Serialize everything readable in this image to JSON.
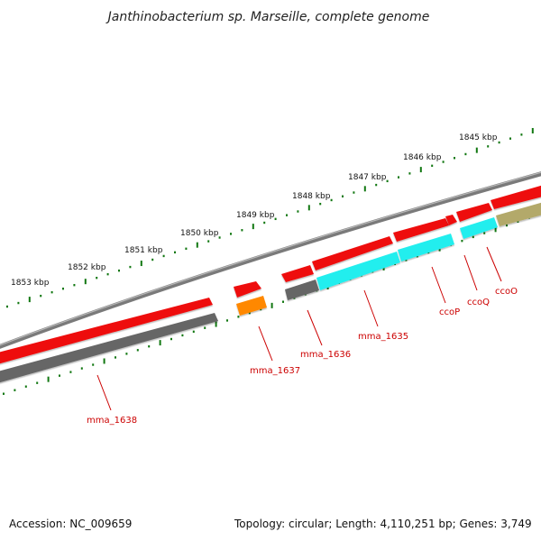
{
  "title": "Janthinobacterium sp. Marseille, complete genome",
  "footer": {
    "accession": "Accession: NC_009659",
    "summary": "Topology: circular; Length: 4,110,251 bp; Genes: 3,749"
  },
  "colors": {
    "cds": "#ee1111",
    "rna_gray": "#666666",
    "orange": "#ff8800",
    "cyan": "#22eeee",
    "olive": "#b3a96a",
    "backbone": "#777777",
    "ticks": "#117711",
    "labels": "#cc0000"
  },
  "ticks": [
    {
      "label": "1853 kbp"
    },
    {
      "label": "1852 kbp"
    },
    {
      "label": "1851 kbp"
    },
    {
      "label": "1850 kbp"
    },
    {
      "label": "1849 kbp"
    },
    {
      "label": "1848 kbp"
    },
    {
      "label": "1847 kbp"
    },
    {
      "label": "1846 kbp"
    },
    {
      "label": "1845 kbp"
    }
  ],
  "genes": [
    {
      "name": "mma_1638"
    },
    {
      "name": "mma_1637"
    },
    {
      "name": "mma_1636"
    },
    {
      "name": "mma_1635"
    },
    {
      "name": "ccoP"
    },
    {
      "name": "ccoQ"
    },
    {
      "name": "ccoO"
    }
  ]
}
